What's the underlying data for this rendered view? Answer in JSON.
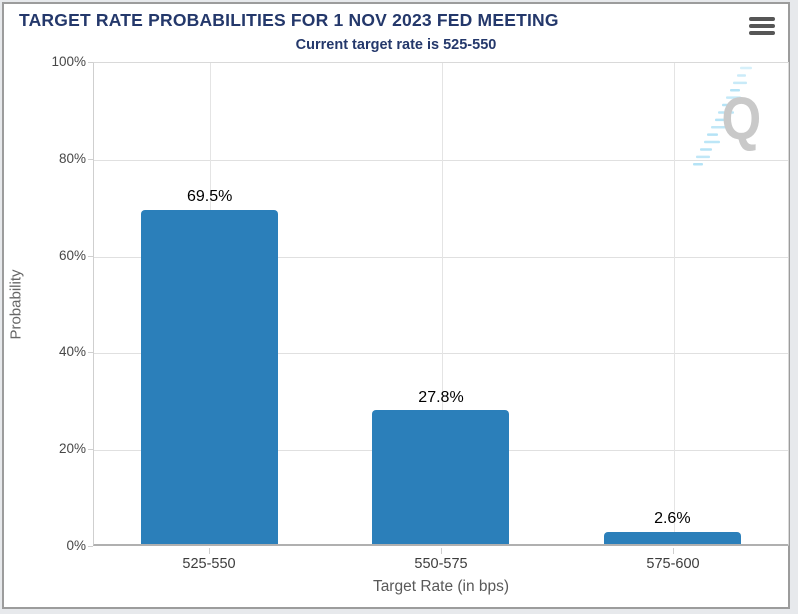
{
  "header": {
    "title": "TARGET RATE PROBABILITIES FOR 1 NOV 2023 FED MEETING",
    "subtitle": "Current target rate is 525-550",
    "title_color": "#24386b",
    "menu_icon": "hamburger-icon"
  },
  "chart_data": {
    "type": "bar",
    "title": "TARGET RATE PROBABILITIES FOR 1 NOV 2023 FED MEETING",
    "subtitle": "Current target rate is 525-550",
    "categories": [
      "525-550",
      "550-575",
      "575-600"
    ],
    "values": [
      69.5,
      27.8,
      2.6
    ],
    "value_labels": [
      "69.5%",
      "27.8%",
      "2.6%"
    ],
    "xlabel": "Target Rate (in bps)",
    "ylabel": "Probability",
    "ylim": [
      0,
      100
    ],
    "ytick_labels": [
      "100%",
      "80%",
      "60%",
      "40%",
      "20%",
      "0%"
    ],
    "grid": true,
    "legend": "none",
    "bar_color": "#2b7fba"
  },
  "watermark": {
    "letter": "Q"
  }
}
